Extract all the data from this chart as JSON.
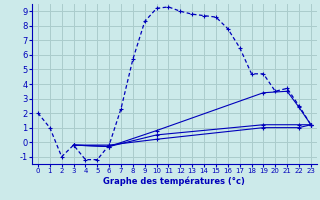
{
  "xlabel": "Graphe des températures (°c)",
  "bg_color": "#cceaea",
  "grid_color": "#aacccc",
  "line_color": "#0000bb",
  "xlim": [
    -0.5,
    23.5
  ],
  "ylim": [
    -1.5,
    9.5
  ],
  "yticks": [
    -1,
    0,
    1,
    2,
    3,
    4,
    5,
    6,
    7,
    8,
    9
  ],
  "xticks": [
    0,
    1,
    2,
    3,
    4,
    5,
    6,
    7,
    8,
    9,
    10,
    11,
    12,
    13,
    14,
    15,
    16,
    17,
    18,
    19,
    20,
    21,
    22,
    23
  ],
  "line1_x": [
    0,
    1,
    2,
    3,
    4,
    5,
    6,
    7,
    8,
    9,
    10,
    11,
    12,
    13,
    14,
    15,
    16,
    17,
    18,
    19,
    20,
    21,
    22,
    23
  ],
  "line1_y": [
    2.0,
    1.0,
    -1.0,
    -0.2,
    -1.2,
    -1.2,
    -0.2,
    2.3,
    5.7,
    8.3,
    9.2,
    9.3,
    9.0,
    8.8,
    8.7,
    8.6,
    7.8,
    6.5,
    4.7,
    4.7,
    3.5,
    3.7,
    2.5,
    1.2
  ],
  "line2_x": [
    3,
    6,
    10,
    19,
    21,
    22,
    23
  ],
  "line2_y": [
    -0.2,
    -0.3,
    0.8,
    3.4,
    3.5,
    2.4,
    1.2
  ],
  "line3_x": [
    3,
    6,
    10,
    19,
    22,
    23
  ],
  "line3_y": [
    -0.2,
    -0.3,
    0.5,
    1.2,
    1.2,
    1.2
  ],
  "line4_x": [
    3,
    6,
    10,
    19,
    22,
    23
  ],
  "line4_y": [
    -0.2,
    -0.2,
    0.2,
    1.0,
    1.0,
    1.2
  ],
  "ylabel_fontsize": 6.0,
  "tick_fontsize_x": 5.0,
  "tick_fontsize_y": 6.0
}
